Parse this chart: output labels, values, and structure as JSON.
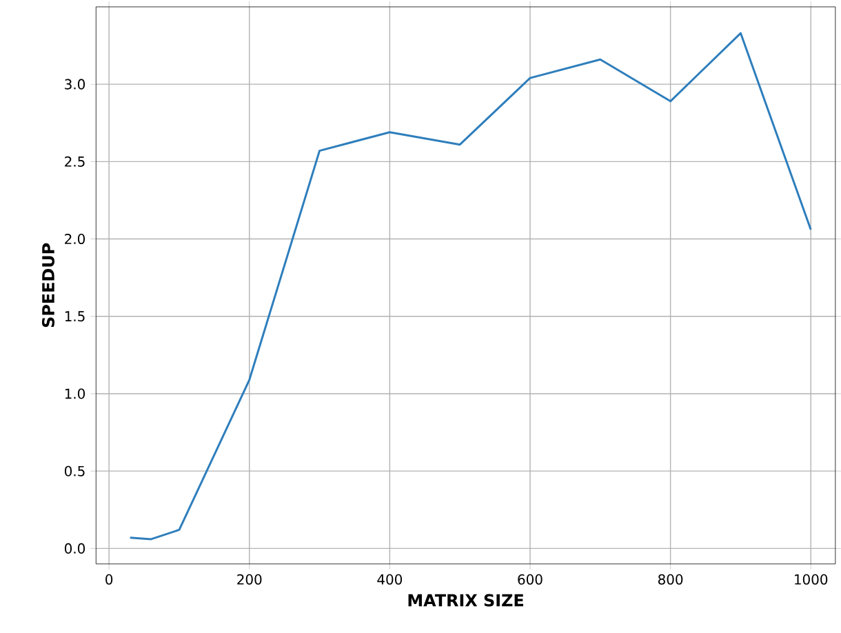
{
  "chart_data": {
    "type": "line",
    "xlabel": "MATRIX SIZE",
    "ylabel": "SPEEDUP",
    "x": [
      30,
      60,
      100,
      200,
      300,
      400,
      500,
      600,
      700,
      800,
      900,
      1000
    ],
    "series": [
      {
        "color": "#2e7ebc",
        "values": [
          0.07,
          0.06,
          0.12,
          1.09,
          2.57,
          2.69,
          2.61,
          3.04,
          3.16,
          2.89,
          3.33,
          2.06
        ]
      }
    ],
    "xlim": [
      -18.5,
      1035
    ],
    "ylim": [
      -0.1,
      3.5
    ],
    "xticks": [
      0,
      200,
      400,
      600,
      800,
      1000
    ],
    "yticks": [
      {
        "value": 0,
        "label": "0.0"
      },
      {
        "value": 0.5,
        "label": "0.5"
      },
      {
        "value": 1,
        "label": "1.0"
      },
      {
        "value": 1.5,
        "label": "1.5"
      },
      {
        "value": 2,
        "label": "2.0"
      },
      {
        "value": 2.5,
        "label": "2.5"
      },
      {
        "value": 3,
        "label": "3.0"
      }
    ],
    "grid": true
  }
}
